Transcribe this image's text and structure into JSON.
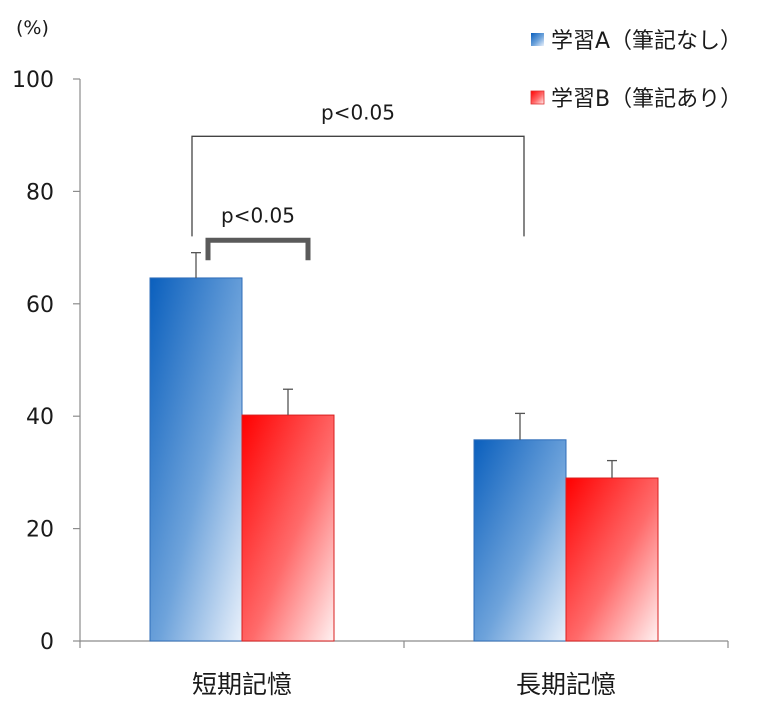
{
  "chart_data": {
    "type": "bar",
    "categories": [
      "短期記憶",
      "長期記憶"
    ],
    "series": [
      {
        "name": "学習A（筆記なし）",
        "values": [
          64.6,
          35.8
        ],
        "errors": [
          4.5,
          4.7
        ],
        "color": "#1f6fc5"
      },
      {
        "name": "学習B（筆記あり）",
        "values": [
          40.2,
          29.0
        ],
        "errors": [
          4.6,
          3.1
        ],
        "color": "#ff1a1a"
      }
    ],
    "ylabel": "(%)",
    "ylim": [
      0,
      100
    ],
    "yticks": [
      0,
      20,
      40,
      60,
      80,
      100
    ],
    "legend_position": "top-right",
    "grid": false,
    "annotations": [
      {
        "text": "p<0.05",
        "type": "bracket-between-series",
        "category": "短期記憶"
      },
      {
        "text": "p<0.05",
        "type": "bracket-between-categories",
        "series": "学習A（筆記なし）"
      }
    ]
  }
}
